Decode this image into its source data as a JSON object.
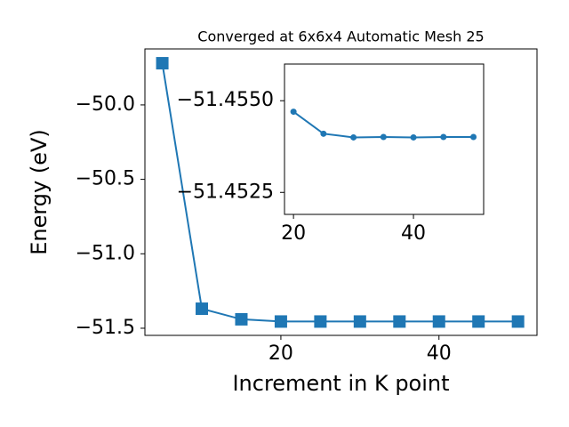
{
  "chart_data": [
    {
      "type": "line",
      "title": "Converged at 6x6x4 Automatic Mesh 25",
      "xlabel": "Increment in K point",
      "ylabel": "Energy (eV)",
      "x": [
        5,
        10,
        15,
        20,
        25,
        30,
        35,
        40,
        45,
        50
      ],
      "series": [
        {
          "color": "#1f77b4",
          "marker": "square",
          "values": [
            -49.72,
            -51.369,
            -51.44,
            -51.455,
            -51.455,
            -51.455,
            -51.455,
            -51.455,
            -51.455,
            -51.455
          ]
        }
      ],
      "xlim": [
        2.8,
        52.4
      ],
      "ylim": [
        -51.548,
        -49.624
      ],
      "xticks": [
        20,
        40
      ],
      "yticks": [
        {
          "value": -50.0,
          "label": "−50.0"
        },
        {
          "value": -50.5,
          "label": "−50.5"
        },
        {
          "value": -51.0,
          "label": "−51.0"
        },
        {
          "value": -51.5,
          "label": "−51.5"
        }
      ]
    },
    {
      "type": "line",
      "x": [
        20,
        25,
        30,
        35,
        40,
        45,
        50
      ],
      "series": [
        {
          "color": "#1f77b4",
          "marker": "circle",
          "values": [
            -51.4547,
            -51.4541,
            -51.454,
            -51.45401,
            -51.454,
            -51.45401,
            -51.45401
          ]
        }
      ],
      "xlim": [
        18.5,
        51.7
      ],
      "ylim": [
        -51.4519,
        -51.456
      ],
      "xticks": [
        20,
        40
      ],
      "yticks": [
        {
          "value": -51.455,
          "label": "−51.4550"
        },
        {
          "value": -51.4525,
          "label": "−51.4525"
        }
      ]
    }
  ]
}
